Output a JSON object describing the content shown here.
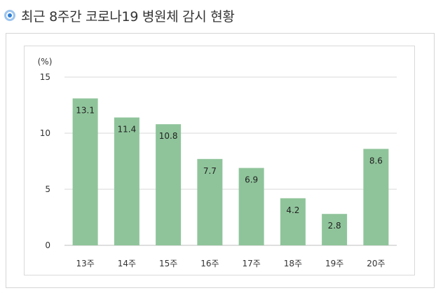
{
  "header": {
    "title": "최근 8주간 코로나19 병원체 감시 현황"
  },
  "chart_data": {
    "type": "bar",
    "title": "최근 8주간 코로나19 병원체 감시 현황",
    "xlabel": "",
    "ylabel": "(%)",
    "categories": [
      "13주",
      "14주",
      "15주",
      "16주",
      "17주",
      "18주",
      "19주",
      "20주"
    ],
    "values": [
      13.1,
      11.4,
      10.8,
      7.7,
      6.9,
      4.2,
      2.8,
      8.6
    ],
    "data_labels": [
      "13.1",
      "11.4",
      "10.8",
      "7.7",
      "6.9",
      "4.2",
      "2.8",
      "8.6"
    ],
    "yticks": [
      "0",
      "5",
      "10",
      "15"
    ],
    "ytick_values": [
      0,
      5,
      10,
      15
    ],
    "ylim": [
      0,
      15
    ],
    "grid": true,
    "legend": "none",
    "bar_color": "#8fc49a",
    "grid_color": "#d9d9d9"
  }
}
